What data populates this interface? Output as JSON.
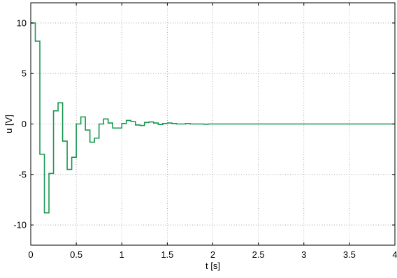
{
  "chart_data": {
    "type": "line",
    "title": "",
    "xlabel": "t [s]",
    "ylabel": "u [V]",
    "xlim": [
      0,
      4
    ],
    "ylim": [
      -12,
      12
    ],
    "xticks": [
      0,
      0.5,
      1,
      1.5,
      2,
      2.5,
      3,
      3.5,
      4
    ],
    "xtick_labels": [
      "0",
      "0.5",
      "1",
      "1.5",
      "2",
      "2.5",
      "3",
      "3.5",
      "4"
    ],
    "yticks": [
      -10,
      -5,
      0,
      5,
      10
    ],
    "ytick_labels": [
      "-10",
      "-5",
      "0",
      "5",
      "10"
    ],
    "grid": true,
    "legend": "none",
    "step": true,
    "series": [
      {
        "color": "#1a9850",
        "x": [
          0,
          0.05,
          0.1,
          0.15,
          0.2,
          0.25,
          0.3,
          0.35,
          0.4,
          0.45,
          0.5,
          0.55,
          0.6,
          0.65,
          0.7,
          0.75,
          0.8,
          0.85,
          0.9,
          0.95,
          1.0,
          1.05,
          1.1,
          1.15,
          1.2,
          1.25,
          1.3,
          1.35,
          1.4,
          1.45,
          1.5,
          1.55,
          1.6,
          1.65,
          1.7,
          1.75,
          1.8,
          1.85,
          1.9,
          1.95,
          2.0,
          4.0
        ],
        "y": [
          10,
          8.2,
          -3.0,
          -8.8,
          -4.9,
          1.3,
          2.1,
          -1.7,
          -4.5,
          -3.3,
          0.0,
          0.7,
          -0.6,
          -1.8,
          -1.4,
          0.0,
          0.5,
          0.1,
          -0.4,
          -0.4,
          0.05,
          0.35,
          0.25,
          -0.1,
          -0.15,
          0.15,
          0.2,
          0.1,
          -0.05,
          0.05,
          0.1,
          0.05,
          0.0,
          0.0,
          0.05,
          0.0,
          0.0,
          0.0,
          -0.02,
          0.0,
          0.0,
          0.0
        ]
      }
    ]
  }
}
